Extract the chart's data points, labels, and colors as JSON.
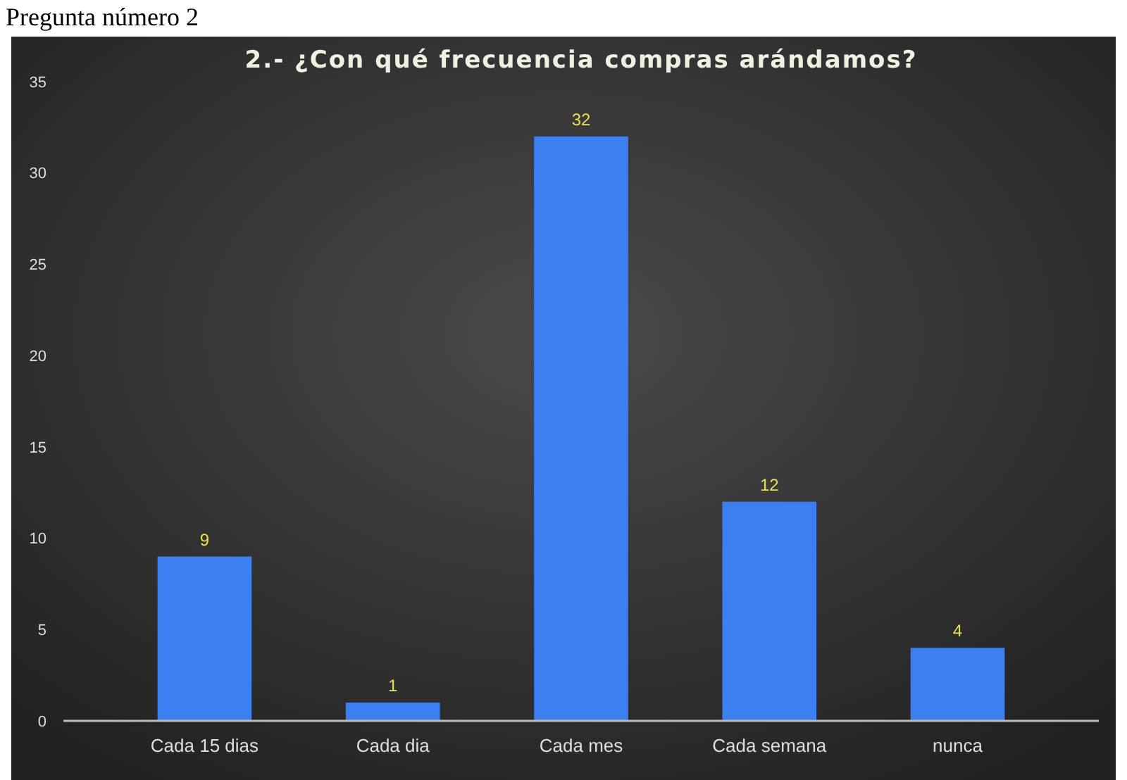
{
  "chart_data": {
    "type": "bar",
    "title": "2.- ¿Con qué frecuencia compras arándamos?",
    "annotations": [
      "Pregunta número 2"
    ],
    "categories": [
      "Cada 15 dias",
      "Cada dia",
      "Cada mes",
      "Cada semana",
      "nunca"
    ],
    "values": [
      9,
      1,
      32,
      12,
      4
    ],
    "color": "#3b7ff0",
    "ylim": [
      0,
      35
    ],
    "yticks": [
      0,
      5,
      10,
      15,
      20,
      25,
      30,
      35
    ],
    "grid": false,
    "data_labels": true
  }
}
